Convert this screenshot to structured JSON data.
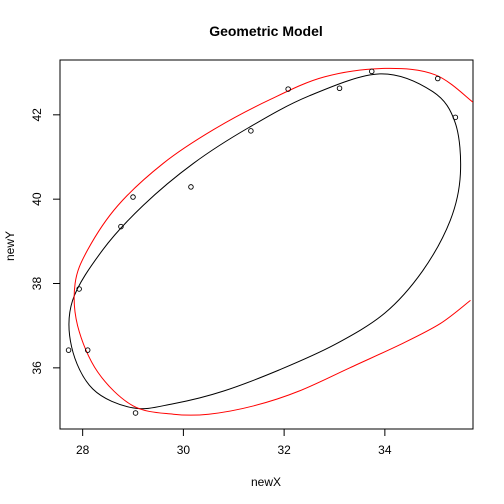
{
  "chart_data": {
    "type": "scatter",
    "title": "Geometric Model",
    "xlabel": "newX",
    "ylabel": "newY",
    "xlim": [
      27.55,
      35.75
    ],
    "ylim": [
      34.55,
      43.3
    ],
    "x_ticks": [
      "28",
      "30",
      "32",
      "34"
    ],
    "y_ticks": [
      "36",
      "38",
      "40",
      "42"
    ],
    "grid": false,
    "legend": "none",
    "points": {
      "x": [
        27.72,
        27.93,
        28.1,
        28.76,
        29.0,
        29.05,
        30.15,
        31.34,
        32.08,
        33.1,
        33.74,
        35.05,
        35.4
      ],
      "y": [
        36.42,
        37.87,
        36.42,
        39.35,
        40.05,
        34.93,
        40.29,
        41.62,
        42.61,
        42.63,
        43.03,
        42.86,
        41.94
      ]
    },
    "series": [
      {
        "color": "#000000",
        "curve": "closed ellipse",
        "x": [
          33.9,
          34.95,
          35.4,
          35.5,
          35.3,
          34.75,
          34.0,
          33.0,
          31.9,
          30.8,
          29.8,
          29.0,
          28.2,
          27.78,
          27.8,
          28.4,
          29.2,
          30.2,
          31.3,
          32.5,
          33.9
        ],
        "y": [
          42.97,
          42.55,
          41.8,
          40.6,
          39.5,
          38.3,
          37.3,
          36.55,
          35.95,
          35.45,
          35.15,
          35.05,
          35.5,
          36.5,
          37.6,
          38.8,
          39.85,
          40.85,
          41.7,
          42.45,
          42.97
        ]
      },
      {
        "color": "#ff0000",
        "curve": "ellipse (clipped at plot edge)",
        "x": [
          35.7,
          35.1,
          34.3,
          33.3,
          32.3,
          31.4,
          30.5,
          29.8,
          29.0,
          28.3,
          27.9,
          27.85,
          28.1,
          28.7,
          29.6,
          30.6,
          31.7,
          32.8,
          34.0,
          35.0,
          35.75
        ],
        "y": [
          37.6,
          37.05,
          36.55,
          36.0,
          35.45,
          35.1,
          34.9,
          34.9,
          35.1,
          35.9,
          37.0,
          38.0,
          38.8,
          39.85,
          40.85,
          41.65,
          42.35,
          42.9,
          43.1,
          42.95,
          42.3
        ]
      }
    ]
  }
}
